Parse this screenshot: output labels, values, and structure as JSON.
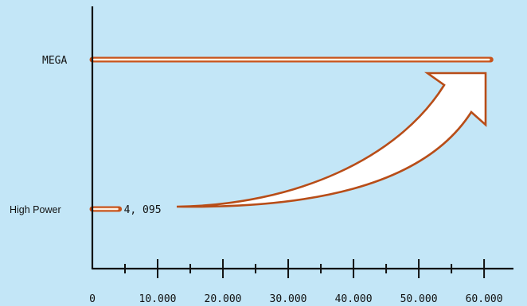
{
  "chart_data": {
    "type": "bar",
    "title": "",
    "xlabel": "",
    "ylabel": "",
    "orientation": "horizontal",
    "categories": [
      "MEGA",
      "High Power"
    ],
    "values": [
      61000,
      4095
    ],
    "data_labels": [
      "",
      "4, 095"
    ],
    "x_ticks": [
      0,
      10000,
      20000,
      30000,
      40000,
      50000,
      60000
    ],
    "x_tick_labels": [
      "0",
      "10.000",
      "20.000",
      "30.000",
      "40.000",
      "50.000",
      "60.000"
    ],
    "xlim": [
      0,
      64500
    ],
    "grid": false,
    "annotation": "curved arrow from High Power bar to MEGA bar",
    "colors": {
      "background": "#c3e6f7",
      "bar_core": "#fff2e4",
      "bar_glow": "#c8541c",
      "arrow_fill": "#ffffff",
      "arrow_stroke": "#b84d18",
      "axis": "#111111"
    }
  }
}
